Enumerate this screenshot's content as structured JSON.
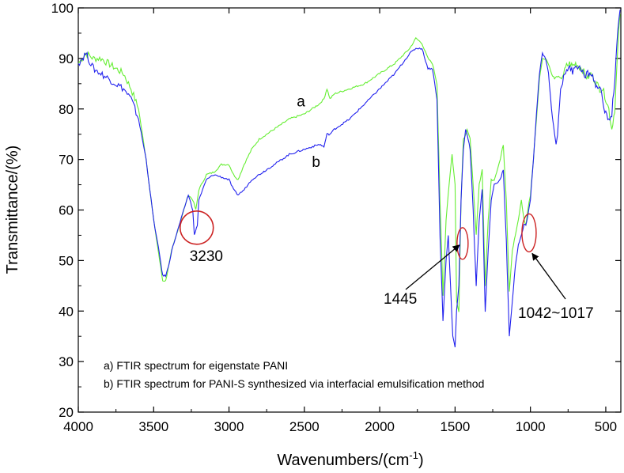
{
  "chart_data": {
    "type": "line",
    "xlabel": "Wavenumbers/(cm",
    "xlabel_sup": "-1",
    "xlabel_close": ")",
    "ylabel": "Transmittance/(%)",
    "xlim": [
      4000,
      400
    ],
    "ylim": [
      20,
      100
    ],
    "x_ticks": [
      4000,
      3500,
      3000,
      2500,
      2000,
      1500,
      1000,
      500
    ],
    "y_ticks": [
      20,
      30,
      40,
      50,
      60,
      70,
      80,
      90,
      100
    ],
    "grid": false,
    "series": [
      {
        "name": "a",
        "color": "#66ee33",
        "points": [
          [
            4000,
            89
          ],
          [
            3950,
            91
          ],
          [
            3900,
            90
          ],
          [
            3850,
            90
          ],
          [
            3800,
            89
          ],
          [
            3750,
            88
          ],
          [
            3700,
            87
          ],
          [
            3650,
            84
          ],
          [
            3600,
            80
          ],
          [
            3550,
            70
          ],
          [
            3500,
            58
          ],
          [
            3460,
            50
          ],
          [
            3440,
            46
          ],
          [
            3420,
            46
          ],
          [
            3400,
            49
          ],
          [
            3380,
            52
          ],
          [
            3350,
            55
          ],
          [
            3300,
            60
          ],
          [
            3270,
            63
          ],
          [
            3240,
            62
          ],
          [
            3220,
            60
          ],
          [
            3200,
            64
          ],
          [
            3150,
            67
          ],
          [
            3100,
            67.5
          ],
          [
            3050,
            69
          ],
          [
            3000,
            69
          ],
          [
            2970,
            67
          ],
          [
            2940,
            66
          ],
          [
            2900,
            69
          ],
          [
            2850,
            72
          ],
          [
            2800,
            74
          ],
          [
            2700,
            76
          ],
          [
            2600,
            78
          ],
          [
            2500,
            79
          ],
          [
            2400,
            81
          ],
          [
            2370,
            82
          ],
          [
            2350,
            84
          ],
          [
            2330,
            82
          ],
          [
            2300,
            83
          ],
          [
            2200,
            84
          ],
          [
            2100,
            85
          ],
          [
            2000,
            87
          ],
          [
            1900,
            89
          ],
          [
            1800,
            92
          ],
          [
            1760,
            94
          ],
          [
            1720,
            93
          ],
          [
            1680,
            90
          ],
          [
            1650,
            89
          ],
          [
            1620,
            85
          ],
          [
            1600,
            62
          ],
          [
            1580,
            43
          ],
          [
            1560,
            58
          ],
          [
            1540,
            65
          ],
          [
            1520,
            71
          ],
          [
            1500,
            65
          ],
          [
            1490,
            42
          ],
          [
            1475,
            40
          ],
          [
            1460,
            62
          ],
          [
            1445,
            74
          ],
          [
            1430,
            75
          ],
          [
            1420,
            76
          ],
          [
            1400,
            74
          ],
          [
            1380,
            65
          ],
          [
            1360,
            55
          ],
          [
            1340,
            65
          ],
          [
            1320,
            68
          ],
          [
            1300,
            45
          ],
          [
            1280,
            58
          ],
          [
            1260,
            66
          ],
          [
            1240,
            66
          ],
          [
            1200,
            70
          ],
          [
            1180,
            73
          ],
          [
            1160,
            62
          ],
          [
            1140,
            44
          ],
          [
            1120,
            52
          ],
          [
            1100,
            55
          ],
          [
            1080,
            58
          ],
          [
            1060,
            62
          ],
          [
            1042,
            58
          ],
          [
            1030,
            57
          ],
          [
            1017,
            60
          ],
          [
            1000,
            63
          ],
          [
            980,
            70
          ],
          [
            960,
            78
          ],
          [
            940,
            86
          ],
          [
            920,
            90
          ],
          [
            900,
            90
          ],
          [
            880,
            89
          ],
          [
            860,
            87
          ],
          [
            840,
            86
          ],
          [
            820,
            86.5
          ],
          [
            800,
            86
          ],
          [
            780,
            87
          ],
          [
            760,
            88.5
          ],
          [
            740,
            89
          ],
          [
            720,
            88.5
          ],
          [
            700,
            89
          ],
          [
            680,
            88.5
          ],
          [
            660,
            88
          ],
          [
            640,
            87
          ],
          [
            620,
            86
          ],
          [
            600,
            87
          ],
          [
            580,
            86
          ],
          [
            560,
            85
          ],
          [
            540,
            84
          ],
          [
            520,
            84
          ],
          [
            500,
            82
          ],
          [
            480,
            80
          ],
          [
            460,
            76
          ],
          [
            440,
            80
          ],
          [
            420,
            92
          ],
          [
            405,
            99
          ]
        ]
      },
      {
        "name": "b",
        "color": "#2222ee",
        "points": [
          [
            4000,
            89
          ],
          [
            3950,
            91
          ],
          [
            3900,
            88
          ],
          [
            3850,
            87
          ],
          [
            3800,
            86
          ],
          [
            3750,
            85
          ],
          [
            3700,
            84
          ],
          [
            3650,
            82
          ],
          [
            3600,
            78
          ],
          [
            3550,
            70
          ],
          [
            3500,
            58
          ],
          [
            3460,
            51
          ],
          [
            3440,
            47
          ],
          [
            3420,
            47
          ],
          [
            3400,
            49
          ],
          [
            3380,
            52
          ],
          [
            3350,
            55
          ],
          [
            3300,
            60
          ],
          [
            3270,
            63
          ],
          [
            3240,
            60
          ],
          [
            3230,
            55
          ],
          [
            3210,
            57
          ],
          [
            3200,
            62
          ],
          [
            3150,
            66
          ],
          [
            3100,
            67
          ],
          [
            3050,
            66.5
          ],
          [
            3000,
            66
          ],
          [
            2970,
            64
          ],
          [
            2940,
            63
          ],
          [
            2900,
            64
          ],
          [
            2850,
            66
          ],
          [
            2800,
            67
          ],
          [
            2700,
            69
          ],
          [
            2600,
            71
          ],
          [
            2500,
            72
          ],
          [
            2400,
            73
          ],
          [
            2370,
            72.5
          ],
          [
            2350,
            75
          ],
          [
            2330,
            75
          ],
          [
            2300,
            76
          ],
          [
            2200,
            78
          ],
          [
            2100,
            81
          ],
          [
            2000,
            84
          ],
          [
            1900,
            87
          ],
          [
            1800,
            91
          ],
          [
            1760,
            92
          ],
          [
            1720,
            92
          ],
          [
            1680,
            88
          ],
          [
            1650,
            88
          ],
          [
            1620,
            82
          ],
          [
            1600,
            55
          ],
          [
            1580,
            38
          ],
          [
            1560,
            50
          ],
          [
            1545,
            55
          ],
          [
            1530,
            45
          ],
          [
            1515,
            35
          ],
          [
            1500,
            33
          ],
          [
            1490,
            40
          ],
          [
            1475,
            45
          ],
          [
            1460,
            62
          ],
          [
            1445,
            72
          ],
          [
            1430,
            76
          ],
          [
            1420,
            75
          ],
          [
            1400,
            72
          ],
          [
            1380,
            60
          ],
          [
            1360,
            45
          ],
          [
            1340,
            58
          ],
          [
            1320,
            64
          ],
          [
            1300,
            40
          ],
          [
            1280,
            52
          ],
          [
            1260,
            62
          ],
          [
            1240,
            65
          ],
          [
            1200,
            66
          ],
          [
            1180,
            68
          ],
          [
            1160,
            54
          ],
          [
            1140,
            35
          ],
          [
            1120,
            42
          ],
          [
            1100,
            49
          ],
          [
            1080,
            53
          ],
          [
            1060,
            55
          ],
          [
            1042,
            57
          ],
          [
            1030,
            57
          ],
          [
            1017,
            59
          ],
          [
            1000,
            62
          ],
          [
            980,
            70
          ],
          [
            960,
            79
          ],
          [
            940,
            87
          ],
          [
            920,
            91
          ],
          [
            900,
            90
          ],
          [
            880,
            87
          ],
          [
            860,
            80
          ],
          [
            840,
            75
          ],
          [
            830,
            73
          ],
          [
            820,
            75
          ],
          [
            800,
            84
          ],
          [
            780,
            86
          ],
          [
            760,
            88
          ],
          [
            740,
            88
          ],
          [
            720,
            87.5
          ],
          [
            700,
            89
          ],
          [
            680,
            88
          ],
          [
            660,
            88
          ],
          [
            640,
            86
          ],
          [
            620,
            87
          ],
          [
            600,
            87
          ],
          [
            580,
            86
          ],
          [
            560,
            84
          ],
          [
            540,
            85
          ],
          [
            520,
            81
          ],
          [
            500,
            79
          ],
          [
            480,
            78
          ],
          [
            460,
            79
          ],
          [
            440,
            86
          ],
          [
            420,
            95
          ],
          [
            405,
            100
          ]
        ]
      }
    ],
    "series_labels": [
      {
        "text": "a",
        "x": 2550,
        "y": 80.5
      },
      {
        "text": "b",
        "x": 2450,
        "y": 68.5
      }
    ],
    "annotations": [
      {
        "text": "3230",
        "circle_x": 3230,
        "circle_y": 56.5
      },
      {
        "text": "1445",
        "circle_x": 1445,
        "circle_y": 54
      },
      {
        "text": "1042~1017",
        "circle_x": 1030,
        "circle_y": 55
      }
    ],
    "notes": [
      "a) FTIR spectrum for eigenstate PANI",
      "b) FTIR spectrum for PANI-S synthesized via interfacial emulsification method"
    ]
  }
}
